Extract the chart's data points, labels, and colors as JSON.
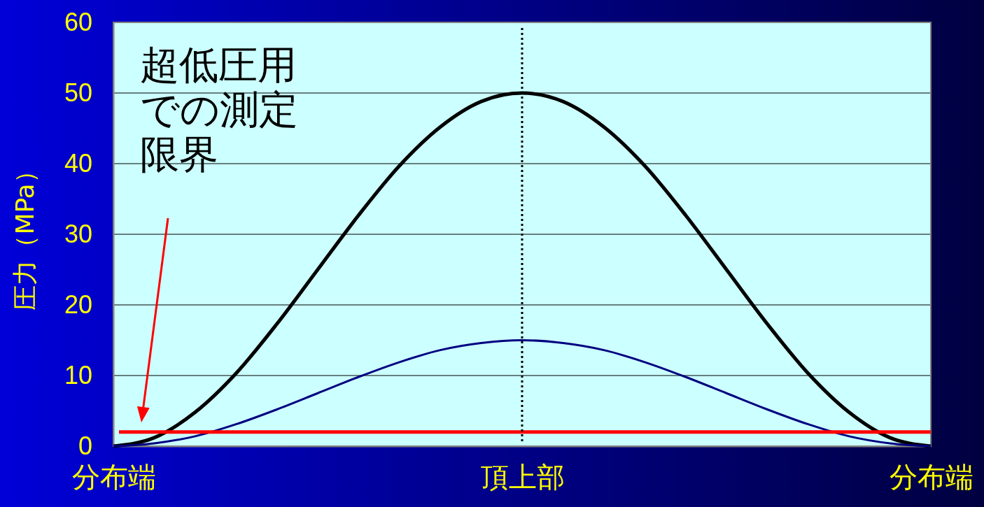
{
  "chart_data": {
    "type": "line",
    "ylabel": "圧力（MPa）",
    "categories": [
      "分布端",
      null,
      null,
      null,
      null,
      null,
      null,
      null,
      null,
      null,
      "頂上部",
      null,
      null,
      null,
      null,
      null,
      null,
      null,
      null,
      null,
      "分布端"
    ],
    "series": [
      {
        "color": "#000000",
        "values": [
          0,
          1.2,
          4.8,
          10.3,
          17.3,
          25,
          32.7,
          39.7,
          45.2,
          48.8,
          50,
          48.8,
          45.2,
          39.7,
          32.7,
          25,
          17.3,
          10.3,
          4.8,
          1.2,
          0
        ]
      },
      {
        "color": "#000080",
        "values": [
          0,
          0.4,
          1.4,
          3.1,
          5.2,
          7.5,
          9.8,
          11.9,
          13.6,
          14.6,
          15,
          14.6,
          13.6,
          11.9,
          9.8,
          7.5,
          5.2,
          3.1,
          1.4,
          0.4,
          0
        ]
      }
    ],
    "ylim": [
      0,
      60
    ],
    "yticks": [
      0,
      10,
      20,
      30,
      40,
      50,
      60
    ],
    "grid": "y",
    "marker": "none",
    "line_style": "solid",
    "ref_lines": [
      {
        "axis": "y",
        "value": 2,
        "color": "#ff0000",
        "line_style": "solid"
      },
      {
        "axis": "x",
        "value": "頂上部",
        "color": "#000000",
        "line_style": "dotted"
      }
    ],
    "annotations": [
      "超低圧用での測定限界"
    ]
  }
}
